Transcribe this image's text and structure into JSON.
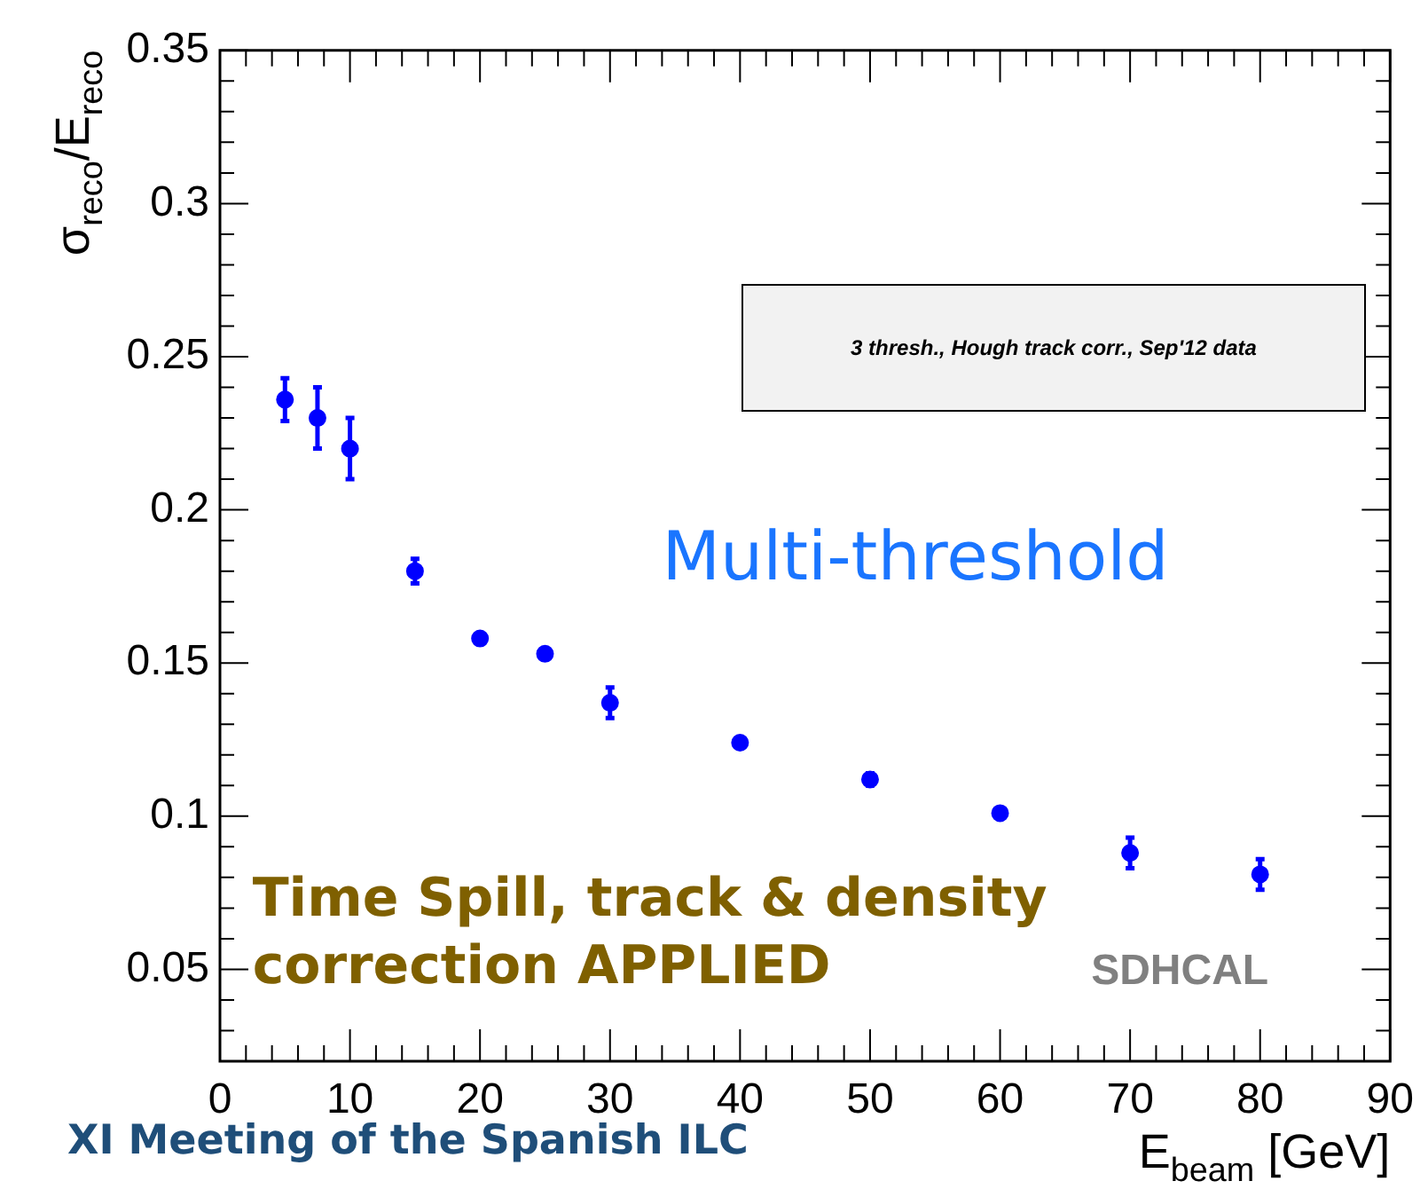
{
  "chart_data": {
    "type": "scatter",
    "xlabel": "E$_{beam}$ [GeV]",
    "ylabel": "σ$_{reco}$/E$_{reco}$",
    "x": [
      5,
      7.5,
      10,
      15,
      20,
      25,
      30,
      40,
      50,
      60,
      70,
      80
    ],
    "series": [
      {
        "color": "#0000ff",
        "values": [
          0.236,
          0.23,
          0.22,
          0.18,
          0.158,
          0.153,
          0.137,
          0.124,
          0.112,
          0.101,
          0.088,
          0.081
        ],
        "errors": [
          0.007,
          0.01,
          0.01,
          0.004,
          null,
          null,
          0.005,
          null,
          0.002,
          null,
          0.005,
          0.005
        ]
      }
    ],
    "xlim": [
      0,
      90
    ],
    "xticks": [
      0,
      10,
      20,
      30,
      40,
      50,
      60,
      70,
      80,
      90
    ],
    "ylim": [
      0.02,
      0.35
    ],
    "yticks": [
      0.05,
      0.1,
      0.15,
      0.2,
      0.25,
      0.3,
      0.35
    ],
    "marker": "circle",
    "grid": false,
    "legend": false,
    "annotations": [
      "3 thresh., Hough track corr., Sep'12 data",
      "Multi-threshold",
      "Time Spill, track & density correction APPLIED",
      "SDHCAL",
      "XI Meeting of the Spanish ILC"
    ]
  }
}
